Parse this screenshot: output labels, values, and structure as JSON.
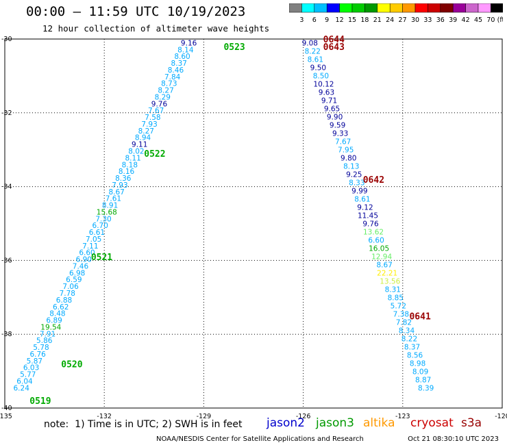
{
  "header": {
    "title": "00:00 – 11:59 UTC 10/19/2023",
    "subtitle": "12 hour collection of altimeter wave heights"
  },
  "colorbar": {
    "ticks": [
      "3",
      "6",
      "9",
      "12",
      "15",
      "18",
      "21",
      "24",
      "27",
      "30",
      "33",
      "36",
      "39",
      "42",
      "45",
      "70"
    ],
    "unit": "(ft)",
    "colors": [
      "#808080",
      "#00ffff",
      "#00bfff",
      "#0000ff",
      "#00ff00",
      "#00cc00",
      "#009900",
      "#ffff00",
      "#ffcc00",
      "#ff9900",
      "#ff0000",
      "#cc0000",
      "#800000",
      "#990099",
      "#cc66cc",
      "#ff99ff",
      "#000000"
    ]
  },
  "series_colors": {
    "light_blue": "#00aaff",
    "navy": "#000099",
    "green": "#00aa00",
    "light_green": "#66ee66",
    "yellow_green": "#ccee44",
    "yellow": "#ffee00",
    "dark_red": "#990000"
  },
  "note": "note:  1) Time is in UTC; 2) SWH is in feet",
  "satellites": [
    {
      "name": "jason2",
      "color": "#0000cc"
    },
    {
      "name": "jason3",
      "color": "#009900"
    },
    {
      "name": "altika",
      "color": "#ff9900"
    },
    {
      "name": "cryosat",
      "color": "#cc0000"
    },
    {
      "name": "s3a",
      "color": "#990000"
    }
  ],
  "footer": {
    "left": "NOAA/NESDIS Center for Satellite Applications and Research",
    "right": "Oct 21 08:30:10 UTC 2023"
  },
  "chart_data": {
    "type": "scatter",
    "xlim": [
      -135,
      -120
    ],
    "ylim": [
      -40,
      -30
    ],
    "x_ticks": [
      "-135",
      "-132",
      "-129",
      "-126",
      "-123",
      "-120"
    ],
    "y_ticks": [
      "-30",
      "-32",
      "-34",
      "-36",
      "-38",
      "-40"
    ],
    "grid": true,
    "tracks": [
      {
        "name": "west",
        "start": [
          -129.45,
          -30.1
        ],
        "end": [
          -134.5,
          -39.45
        ],
        "values": [
          "9.16",
          "8.14",
          "8.60",
          "8.37",
          "8.46",
          "7.84",
          "8.73",
          "8.27",
          "8.29",
          "9.76",
          "7.67",
          "7.58",
          "7.93",
          "8.27",
          "8.94",
          "9.11",
          "8.02",
          "8.11",
          "8.18",
          "8.16",
          "8.36",
          "7.93",
          "8.67",
          "7.61",
          "8.91",
          "15.68",
          "7.30",
          "6.70",
          "6.61",
          "7.05",
          "7.11",
          "6.60",
          "6.90",
          "7.46",
          "6.98",
          "6.59",
          "7.06",
          "7.78",
          "6.88",
          "6.62",
          "8.48",
          "6.89",
          "19.54",
          "7.91",
          "5.86",
          "5.78",
          "6.76",
          "5.87",
          "6.03",
          "5.77",
          "6.04",
          "6.24"
        ],
        "colors": [
          "navy",
          "light_blue",
          "light_blue",
          "light_blue",
          "light_blue",
          "light_blue",
          "light_blue",
          "light_blue",
          "light_blue",
          "navy",
          "light_blue",
          "light_blue",
          "light_blue",
          "light_blue",
          "light_blue",
          "navy",
          "light_blue",
          "light_blue",
          "light_blue",
          "light_blue",
          "light_blue",
          "light_blue",
          "light_blue",
          "light_blue",
          "light_blue",
          "green",
          "light_blue",
          "light_blue",
          "light_blue",
          "light_blue",
          "light_blue",
          "light_blue",
          "light_blue",
          "light_blue",
          "light_blue",
          "light_blue",
          "light_blue",
          "light_blue",
          "light_blue",
          "light_blue",
          "light_blue",
          "light_blue",
          "green",
          "light_blue",
          "light_blue",
          "light_blue",
          "light_blue",
          "light_blue",
          "light_blue",
          "light_blue",
          "light_blue",
          "light_blue"
        ]
      },
      {
        "name": "east",
        "start": [
          -125.8,
          -30.1
        ],
        "end": [
          -122.3,
          -39.45
        ],
        "values": [
          "9.08",
          "8.22",
          "8.61",
          "9.50",
          "8.50",
          "10.12",
          "9.63",
          "9.71",
          "9.65",
          "9.90",
          "9.59",
          "9.33",
          "7.67",
          "7.95",
          "9.80",
          "8.13",
          "9.25",
          "8.33",
          "9.99",
          "8.61",
          "9.12",
          "11.45",
          "9.76",
          "13.62",
          "6.60",
          "16.05",
          "12.94",
          "8.67",
          "22.21",
          "13.56",
          "8.31",
          "8.85",
          "5.72",
          "7.38",
          "7.82",
          "8.34",
          "8.22",
          "8.37",
          "8.56",
          "8.98",
          "8.09",
          "8.87",
          "8.39"
        ],
        "colors": [
          "navy",
          "light_blue",
          "light_blue",
          "navy",
          "light_blue",
          "navy",
          "navy",
          "navy",
          "navy",
          "navy",
          "navy",
          "navy",
          "light_blue",
          "light_blue",
          "navy",
          "light_blue",
          "navy",
          "light_blue",
          "navy",
          "light_blue",
          "navy",
          "navy",
          "navy",
          "light_green",
          "light_blue",
          "green",
          "light_green",
          "light_blue",
          "yellow",
          "yellow_green",
          "light_blue",
          "light_blue",
          "light_blue",
          "light_blue",
          "light_blue",
          "light_blue",
          "light_blue",
          "light_blue",
          "light_blue",
          "light_blue",
          "light_blue",
          "light_blue",
          "light_blue"
        ]
      }
    ],
    "time_labels": [
      {
        "text": "0523",
        "x": -128.4,
        "y": -30.2,
        "color": "green"
      },
      {
        "text": "0522",
        "x": -130.8,
        "y": -33.1,
        "color": "green"
      },
      {
        "text": "0521",
        "x": -132.4,
        "y": -35.9,
        "color": "green"
      },
      {
        "text": "0520",
        "x": -133.3,
        "y": -38.8,
        "color": "green"
      },
      {
        "text": "0519",
        "x": -134.25,
        "y": -39.8,
        "color": "green"
      },
      {
        "text": "0644",
        "x": -125.4,
        "y": -30.0,
        "color": "dark_red"
      },
      {
        "text": "0643",
        "x": -125.4,
        "y": -30.2,
        "color": "dark_red"
      },
      {
        "text": "0642",
        "x": -124.2,
        "y": -33.8,
        "color": "dark_red"
      },
      {
        "text": "0641",
        "x": -122.8,
        "y": -37.5,
        "color": "dark_red"
      }
    ]
  }
}
